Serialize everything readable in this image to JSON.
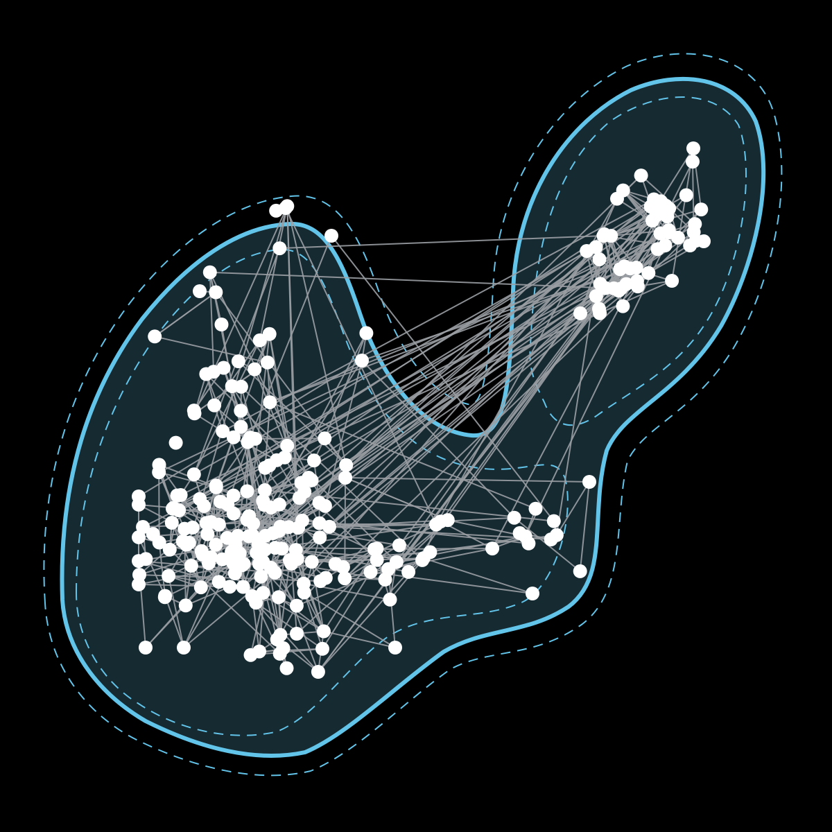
{
  "colors": {
    "background": "#000000",
    "region_fill": "#162a32",
    "region_stroke": "#63c4ea",
    "edge": "#9a9fa3",
    "node": "#ffffff"
  },
  "style": {
    "outer_band": "dashed",
    "inner_band": "dashed",
    "boundary": "solid"
  }
}
